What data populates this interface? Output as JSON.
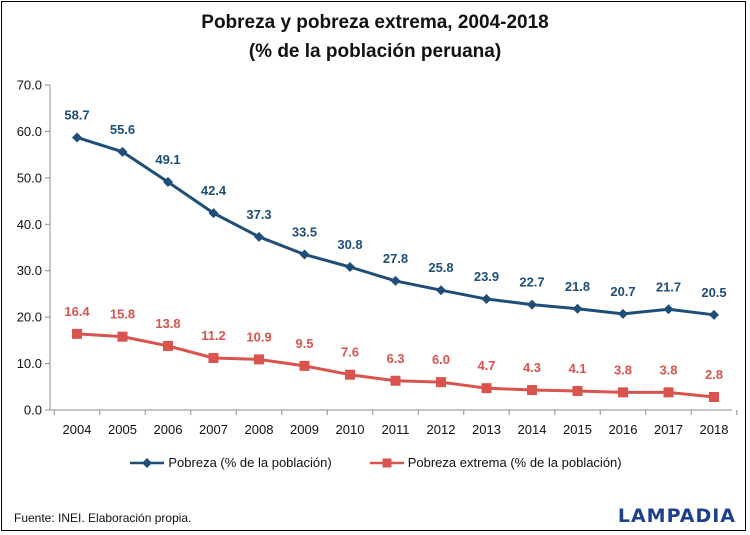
{
  "chart_data": {
    "type": "line",
    "title": "Pobreza y pobreza extrema, 2004-2018",
    "subtitle": "(% de la población peruana)",
    "xlabel": "",
    "ylabel": "",
    "ylim": [
      0,
      70
    ],
    "yticks": [
      "0.0",
      "10.0",
      "20.0",
      "30.0",
      "40.0",
      "50.0",
      "60.0",
      "70.0"
    ],
    "categories": [
      "2004",
      "2005",
      "2006",
      "2007",
      "2008",
      "2009",
      "2010",
      "2011",
      "2012",
      "2013",
      "2014",
      "2015",
      "2016",
      "2017",
      "2018"
    ],
    "series": [
      {
        "name": "Pobreza (% de la población)",
        "color": "#1f4e79",
        "marker": "diamond",
        "values": [
          58.7,
          55.6,
          49.1,
          42.4,
          37.3,
          33.5,
          30.8,
          27.8,
          25.8,
          23.9,
          22.7,
          21.8,
          20.7,
          21.7,
          20.5
        ],
        "labels": [
          "58.7",
          "55.6",
          "49.1",
          "42.4",
          "37.3",
          "33.5",
          "30.8",
          "27.8",
          "25.8",
          "23.9",
          "22.7",
          "21.8",
          "20.7",
          "21.7",
          "20.5"
        ]
      },
      {
        "name": "Pobreza extrema (% de la población)",
        "color": "#d9534f",
        "marker": "square",
        "values": [
          16.4,
          15.8,
          13.8,
          11.2,
          10.9,
          9.5,
          7.6,
          6.3,
          6.0,
          4.7,
          4.3,
          4.1,
          3.8,
          3.8,
          2.8
        ],
        "labels": [
          "16.4",
          "15.8",
          "13.8",
          "11.2",
          "10.9",
          "9.5",
          "7.6",
          "6.3",
          "6.0",
          "4.7",
          "4.3",
          "4.1",
          "3.8",
          "3.8",
          "2.8"
        ]
      }
    ],
    "grid": false,
    "legend_position": "bottom"
  },
  "footer": {
    "source": "Fuente:  INEI. Elaboración propia.",
    "logo": "LAMPADIA"
  },
  "colors": {
    "label_pobreza": "#1f4e79",
    "label_extrema": "#d9534f"
  }
}
